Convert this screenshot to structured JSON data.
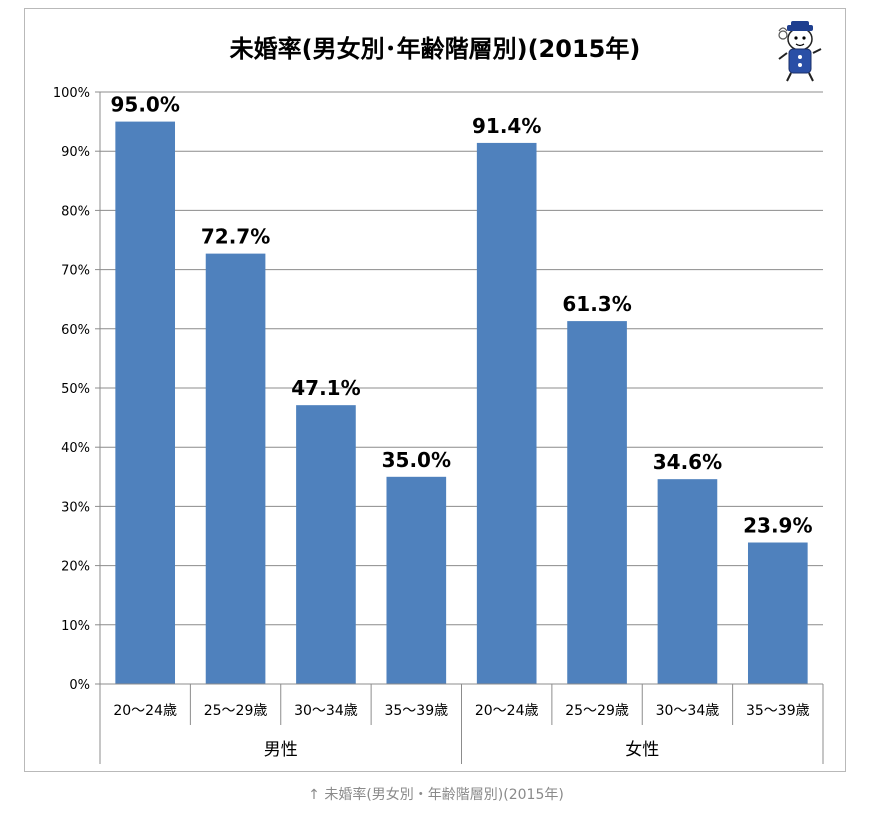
{
  "chart_data": {
    "type": "bar",
    "title": "未婚率(男女別･年齢階層別)(2015年)",
    "groups": [
      "男性",
      "女性"
    ],
    "categories": [
      "20〜24歳",
      "25〜29歳",
      "30〜34歳",
      "35〜39歳",
      "20〜24歳",
      "25〜29歳",
      "30〜34歳",
      "35〜39歳"
    ],
    "group_of_category": [
      0,
      0,
      0,
      0,
      1,
      1,
      1,
      1
    ],
    "values": [
      95.0,
      72.7,
      47.1,
      35.0,
      91.4,
      61.3,
      34.6,
      23.9
    ],
    "data_labels": [
      "95.0%",
      "72.7%",
      "47.1%",
      "35.0%",
      "91.4%",
      "61.3%",
      "34.6%",
      "23.9%"
    ],
    "y_ticks": [
      "0%",
      "10%",
      "20%",
      "30%",
      "40%",
      "50%",
      "60%",
      "70%",
      "80%",
      "90%",
      "100%"
    ],
    "ylim": [
      0,
      100
    ],
    "grid": true,
    "legend": "none",
    "bar_color": "#4f81bd"
  },
  "caption": "↑ 未婚率(男女別・年齢階層別)(2015年)",
  "mascot_icon": "cartoon-character-logo-icon"
}
